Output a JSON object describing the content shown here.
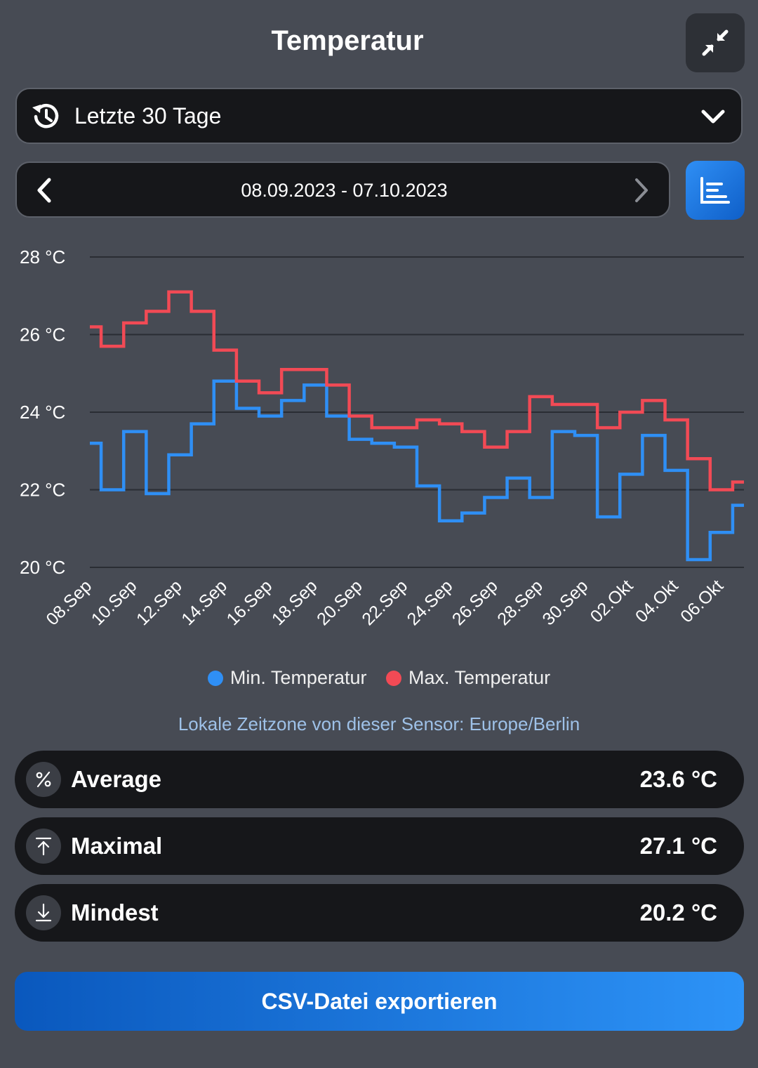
{
  "header": {
    "title": "Temperatur",
    "collapse_icon": "collapse-arrows-icon"
  },
  "range_select": {
    "label": "Letzte 30 Tage",
    "icon": "history-icon"
  },
  "date_nav": {
    "range_text": "08.09.2023 - 07.10.2023"
  },
  "chart_data": {
    "type": "line",
    "step": true,
    "x": [
      "08.Sep",
      "09.Sep",
      "10.Sep",
      "11.Sep",
      "12.Sep",
      "13.Sep",
      "14.Sep",
      "15.Sep",
      "16.Sep",
      "17.Sep",
      "18.Sep",
      "19.Sep",
      "20.Sep",
      "21.Sep",
      "22.Sep",
      "23.Sep",
      "24.Sep",
      "25.Sep",
      "26.Sep",
      "27.Sep",
      "28.Sep",
      "29.Sep",
      "30.Sep",
      "01.Okt",
      "02.Okt",
      "03.Okt",
      "04.Okt",
      "05.Okt",
      "06.Okt",
      "07.Okt"
    ],
    "tick_labels": [
      "08.Sep",
      "10.Sep",
      "12.Sep",
      "14.Sep",
      "16.Sep",
      "18.Sep",
      "20.Sep",
      "22.Sep",
      "24.Sep",
      "26.Sep",
      "28.Sep",
      "30.Sep",
      "02.Okt",
      "04.Okt",
      "06.Okt"
    ],
    "y_ticks": [
      "20 °C",
      "22 °C",
      "24 °C",
      "26 °C",
      "28 °C"
    ],
    "ylim": [
      20,
      28
    ],
    "grid": true,
    "legend_position": "bottom",
    "series": [
      {
        "name": "Min. Temperatur",
        "color": "#2f8ff5",
        "values": [
          23.2,
          22.0,
          23.5,
          21.9,
          22.9,
          23.7,
          24.8,
          24.1,
          23.9,
          24.3,
          24.7,
          23.9,
          23.3,
          23.2,
          23.1,
          22.1,
          21.2,
          21.4,
          21.8,
          22.3,
          21.8,
          23.5,
          23.4,
          21.3,
          22.4,
          23.4,
          22.5,
          20.2,
          20.9,
          21.6
        ]
      },
      {
        "name": "Max. Temperatur",
        "color": "#f24a55",
        "values": [
          26.2,
          25.7,
          26.3,
          26.6,
          27.1,
          26.6,
          25.6,
          24.8,
          24.5,
          25.1,
          25.1,
          24.7,
          23.9,
          23.6,
          23.6,
          23.8,
          23.7,
          23.5,
          23.1,
          23.5,
          24.4,
          24.2,
          24.2,
          23.6,
          24.0,
          24.3,
          23.8,
          22.8,
          22.0,
          22.2
        ]
      }
    ]
  },
  "timezone_note": "Lokale Zeitzone von dieser Sensor: Europe/Berlin",
  "stats": [
    {
      "label": "Average",
      "value": "23.6 °C",
      "icon": "percent-icon"
    },
    {
      "label": "Maximal",
      "value": "27.1 °C",
      "icon": "arrow-up-to-line-icon"
    },
    {
      "label": "Mindest",
      "value": "20.2 °C",
      "icon": "arrow-down-to-line-icon"
    }
  ],
  "export": {
    "label": "CSV-Datei exportieren"
  }
}
